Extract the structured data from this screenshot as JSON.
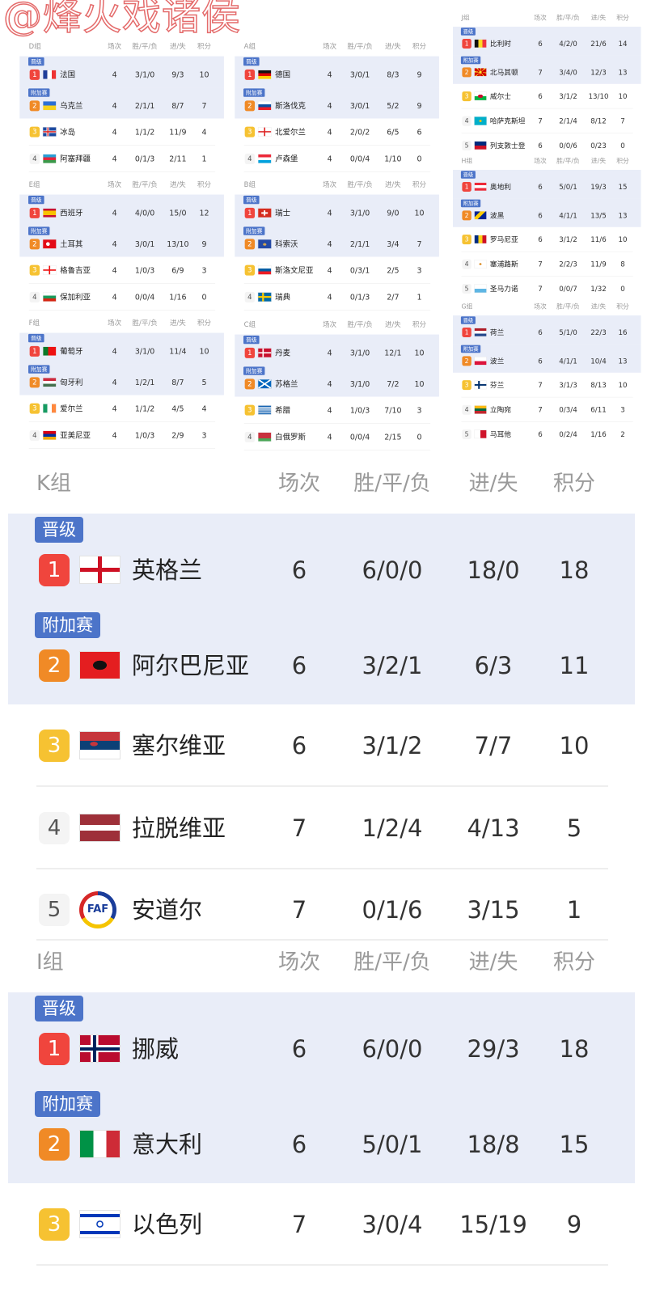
{
  "watermark": "@烽火戏诸侯",
  "headers": {
    "played": "场次",
    "wdl": "胜/平/负",
    "goals": "进/失",
    "points": "积分"
  },
  "tags": {
    "qualified": "晋级",
    "playoff": "附加赛"
  },
  "rank_colors": {
    "1": "#f0453d",
    "2": "#f08a26",
    "3": "#f6c232"
  },
  "groups": [
    {
      "name": "D组",
      "rows": [
        {
          "rank": "1",
          "tag": "qualified",
          "flag": "flag-france",
          "team": "法国",
          "played": "4",
          "wdl": "3/1/0",
          "goals": "9/3",
          "points": "10"
        },
        {
          "rank": "2",
          "tag": "playoff",
          "flag": "flag-ukraine",
          "team": "乌克兰",
          "played": "4",
          "wdl": "2/1/1",
          "goals": "8/7",
          "points": "7"
        },
        {
          "rank": "3",
          "flag": "flag-iceland",
          "team": "冰岛",
          "played": "4",
          "wdl": "1/1/2",
          "goals": "11/9",
          "points": "4"
        },
        {
          "rank": "4",
          "flag": "flag-azerbaijan",
          "team": "阿塞拜疆",
          "played": "4",
          "wdl": "0/1/3",
          "goals": "2/11",
          "points": "1"
        }
      ]
    },
    {
      "name": "E组",
      "rows": [
        {
          "rank": "1",
          "tag": "qualified",
          "flag": "flag-spain",
          "team": "西班牙",
          "played": "4",
          "wdl": "4/0/0",
          "goals": "15/0",
          "points": "12"
        },
        {
          "rank": "2",
          "tag": "playoff",
          "flag": "flag-turkey",
          "team": "土耳其",
          "played": "4",
          "wdl": "3/0/1",
          "goals": "13/10",
          "points": "9"
        },
        {
          "rank": "3",
          "flag": "flag-georgia",
          "team": "格鲁吉亚",
          "played": "4",
          "wdl": "1/0/3",
          "goals": "6/9",
          "points": "3"
        },
        {
          "rank": "4",
          "flag": "flag-bulgaria",
          "team": "保加利亚",
          "played": "4",
          "wdl": "0/0/4",
          "goals": "1/16",
          "points": "0"
        }
      ]
    },
    {
      "name": "F组",
      "rows": [
        {
          "rank": "1",
          "tag": "qualified",
          "flag": "flag-portugal",
          "team": "葡萄牙",
          "played": "4",
          "wdl": "3/1/0",
          "goals": "11/4",
          "points": "10"
        },
        {
          "rank": "2",
          "tag": "playoff",
          "flag": "flag-hungary",
          "team": "匈牙利",
          "played": "4",
          "wdl": "1/2/1",
          "goals": "8/7",
          "points": "5"
        },
        {
          "rank": "3",
          "flag": "flag-ireland",
          "team": "爱尔兰",
          "played": "4",
          "wdl": "1/1/2",
          "goals": "4/5",
          "points": "4"
        },
        {
          "rank": "4",
          "flag": "flag-armenia",
          "team": "亚美尼亚",
          "played": "4",
          "wdl": "1/0/3",
          "goals": "2/9",
          "points": "3"
        }
      ]
    },
    {
      "name": "A组",
      "rows": [
        {
          "rank": "1",
          "tag": "qualified",
          "flag": "flag-germany",
          "team": "德国",
          "played": "4",
          "wdl": "3/0/1",
          "goals": "8/3",
          "points": "9"
        },
        {
          "rank": "2",
          "tag": "playoff",
          "flag": "flag-slovakia",
          "team": "斯洛伐克",
          "played": "4",
          "wdl": "3/0/1",
          "goals": "5/2",
          "points": "9"
        },
        {
          "rank": "3",
          "flag": "flag-northern-ireland",
          "team": "北爱尔兰",
          "played": "4",
          "wdl": "2/0/2",
          "goals": "6/5",
          "points": "6"
        },
        {
          "rank": "4",
          "flag": "flag-luxembourg",
          "team": "卢森堡",
          "played": "4",
          "wdl": "0/0/4",
          "goals": "1/10",
          "points": "0"
        }
      ]
    },
    {
      "name": "B组",
      "rows": [
        {
          "rank": "1",
          "tag": "qualified",
          "flag": "flag-switzerland",
          "team": "瑞士",
          "played": "4",
          "wdl": "3/1/0",
          "goals": "9/0",
          "points": "10"
        },
        {
          "rank": "2",
          "tag": "playoff",
          "flag": "flag-kosovo",
          "team": "科索沃",
          "played": "4",
          "wdl": "2/1/1",
          "goals": "3/4",
          "points": "7"
        },
        {
          "rank": "3",
          "flag": "flag-slovenia",
          "team": "斯洛文尼亚",
          "played": "4",
          "wdl": "0/3/1",
          "goals": "2/5",
          "points": "3"
        },
        {
          "rank": "4",
          "flag": "flag-sweden",
          "team": "瑞典",
          "played": "4",
          "wdl": "0/1/3",
          "goals": "2/7",
          "points": "1"
        }
      ]
    },
    {
      "name": "C组",
      "rows": [
        {
          "rank": "1",
          "tag": "qualified",
          "flag": "flag-denmark",
          "team": "丹麦",
          "played": "4",
          "wdl": "3/1/0",
          "goals": "12/1",
          "points": "10"
        },
        {
          "rank": "2",
          "tag": "playoff",
          "flag": "flag-scotland",
          "team": "苏格兰",
          "played": "4",
          "wdl": "3/1/0",
          "goals": "7/2",
          "points": "10"
        },
        {
          "rank": "3",
          "flag": "flag-greece",
          "team": "希腊",
          "played": "4",
          "wdl": "1/0/3",
          "goals": "7/10",
          "points": "3"
        },
        {
          "rank": "4",
          "flag": "flag-belarus",
          "team": "白俄罗斯",
          "played": "4",
          "wdl": "0/0/4",
          "goals": "2/15",
          "points": "0"
        }
      ]
    },
    {
      "name": "J组",
      "rows": [
        {
          "rank": "1",
          "tag": "qualified",
          "flag": "flag-belgium",
          "team": "比利时",
          "played": "6",
          "wdl": "4/2/0",
          "goals": "21/6",
          "points": "14"
        },
        {
          "rank": "2",
          "tag": "playoff",
          "flag": "flag-north-macedonia",
          "team": "北马其顿",
          "played": "7",
          "wdl": "3/4/0",
          "goals": "12/3",
          "points": "13"
        },
        {
          "rank": "3",
          "flag": "flag-wales",
          "team": "威尔士",
          "played": "6",
          "wdl": "3/1/2",
          "goals": "13/10",
          "points": "10"
        },
        {
          "rank": "4",
          "flag": "flag-kazakhstan",
          "team": "哈萨克斯坦",
          "played": "7",
          "wdl": "2/1/4",
          "goals": "8/12",
          "points": "7"
        },
        {
          "rank": "5",
          "flag": "flag-liechtenstein",
          "team": "列支敦士登",
          "played": "6",
          "wdl": "0/0/6",
          "goals": "0/23",
          "points": "0"
        }
      ]
    },
    {
      "name": "H组",
      "rows": [
        {
          "rank": "1",
          "tag": "qualified",
          "flag": "flag-austria",
          "team": "奥地利",
          "played": "6",
          "wdl": "5/0/1",
          "goals": "19/3",
          "points": "15"
        },
        {
          "rank": "2",
          "tag": "playoff",
          "flag": "flag-bosnia",
          "team": "波黑",
          "played": "6",
          "wdl": "4/1/1",
          "goals": "13/5",
          "points": "13"
        },
        {
          "rank": "3",
          "flag": "flag-romania",
          "team": "罗马尼亚",
          "played": "6",
          "wdl": "3/1/2",
          "goals": "11/6",
          "points": "10"
        },
        {
          "rank": "4",
          "flag": "flag-cyprus",
          "team": "塞浦路斯",
          "played": "7",
          "wdl": "2/2/3",
          "goals": "11/9",
          "points": "8"
        },
        {
          "rank": "5",
          "flag": "flag-san-marino",
          "team": "圣马力诺",
          "played": "7",
          "wdl": "0/0/7",
          "goals": "1/32",
          "points": "0"
        }
      ]
    },
    {
      "name": "G组",
      "rows": [
        {
          "rank": "1",
          "tag": "qualified",
          "flag": "flag-netherlands",
          "team": "荷兰",
          "played": "6",
          "wdl": "5/1/0",
          "goals": "22/3",
          "points": "16"
        },
        {
          "rank": "2",
          "tag": "playoff",
          "flag": "flag-poland",
          "team": "波兰",
          "played": "6",
          "wdl": "4/1/1",
          "goals": "10/4",
          "points": "13"
        },
        {
          "rank": "3",
          "flag": "flag-finland",
          "team": "芬兰",
          "played": "7",
          "wdl": "3/1/3",
          "goals": "8/13",
          "points": "10"
        },
        {
          "rank": "4",
          "flag": "flag-lithuania",
          "team": "立陶宛",
          "played": "7",
          "wdl": "0/3/4",
          "goals": "6/11",
          "points": "3"
        },
        {
          "rank": "5",
          "flag": "flag-malta",
          "team": "马耳他",
          "played": "6",
          "wdl": "0/2/4",
          "goals": "1/16",
          "points": "2"
        }
      ]
    },
    {
      "name": "K组",
      "rows": [
        {
          "rank": "1",
          "tag": "qualified",
          "flag": "flag-england",
          "team": "英格兰",
          "played": "6",
          "wdl": "6/0/0",
          "goals": "18/0",
          "points": "18"
        },
        {
          "rank": "2",
          "tag": "playoff",
          "flag": "flag-albania",
          "team": "阿尔巴尼亚",
          "played": "6",
          "wdl": "3/2/1",
          "goals": "6/3",
          "points": "11"
        },
        {
          "rank": "3",
          "flag": "flag-serbia",
          "team": "塞尔维亚",
          "played": "6",
          "wdl": "3/1/2",
          "goals": "7/7",
          "points": "10"
        },
        {
          "rank": "4",
          "flag": "flag-latvia",
          "team": "拉脱维亚",
          "played": "7",
          "wdl": "1/2/4",
          "goals": "4/13",
          "points": "5"
        },
        {
          "rank": "5",
          "flag": "flag-andorra-faf-logo",
          "flag_text": "FAF",
          "team": "安道尔",
          "played": "7",
          "wdl": "0/1/6",
          "goals": "3/15",
          "points": "1"
        }
      ]
    },
    {
      "name": "I组",
      "rows": [
        {
          "rank": "1",
          "tag": "qualified",
          "flag": "flag-norway",
          "team": "挪威",
          "played": "6",
          "wdl": "6/0/0",
          "goals": "29/3",
          "points": "18"
        },
        {
          "rank": "2",
          "tag": "playoff",
          "flag": "flag-italy",
          "team": "意大利",
          "played": "6",
          "wdl": "5/0/1",
          "goals": "18/8",
          "points": "15"
        },
        {
          "rank": "3",
          "flag": "flag-israel",
          "team": "以色列",
          "played": "7",
          "wdl": "3/0/4",
          "goals": "15/19",
          "points": "9"
        }
      ]
    }
  ]
}
